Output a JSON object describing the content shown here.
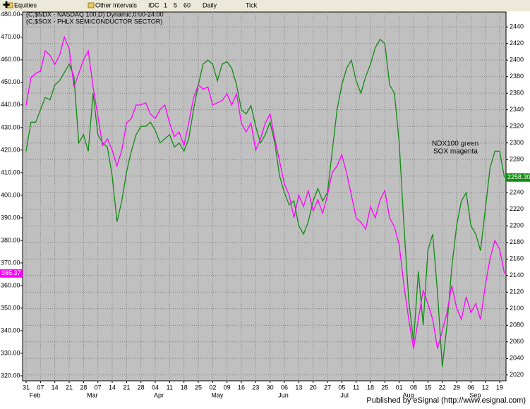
{
  "toolbar": {
    "items": [
      "Equities",
      "Other Intervals",
      "IDC",
      "1",
      "5",
      "60",
      "Daily",
      "Tick"
    ]
  },
  "footer": "Published by eSignal (http://www.esignal.com)",
  "chart_data": {
    "type": "line",
    "annotations": [
      "NDX100 green",
      "SOX magenta"
    ],
    "categories": [
      "31",
      null,
      null,
      "07",
      null,
      null,
      "14",
      null,
      null,
      "21",
      null,
      null,
      "28",
      null,
      null,
      "07",
      null,
      null,
      "14",
      null,
      null,
      "21",
      null,
      null,
      "28",
      null,
      null,
      "04",
      null,
      null,
      "11",
      null,
      null,
      "18",
      null,
      null,
      "25",
      null,
      null,
      "02",
      null,
      null,
      "09",
      null,
      null,
      "16",
      null,
      null,
      "23",
      null,
      null,
      "30",
      null,
      null,
      "06",
      null,
      null,
      "13",
      null,
      null,
      "20",
      null,
      null,
      "27",
      null,
      null,
      "05",
      null,
      null,
      "11",
      null,
      null,
      "18",
      null,
      null,
      "25",
      null,
      null,
      "01",
      null,
      null,
      "08",
      null,
      null,
      "15",
      null,
      null,
      "22",
      null,
      null,
      "29",
      null,
      null,
      "06",
      null,
      null,
      "12",
      null,
      null,
      "19",
      null
    ],
    "month_categories": [
      null,
      "Feb",
      null,
      null,
      null,
      null,
      null,
      null,
      null,
      null,
      null,
      null,
      null,
      "Mar",
      null,
      null,
      null,
      null,
      null,
      null,
      null,
      null,
      null,
      null,
      null,
      null,
      null,
      "Apr",
      null,
      null,
      null,
      null,
      null,
      null,
      null,
      null,
      null,
      null,
      null,
      "May",
      null,
      null,
      null,
      null,
      null,
      null,
      null,
      null,
      null,
      null,
      null,
      null,
      null,
      "Jun",
      null,
      null,
      null,
      null,
      null,
      null,
      null,
      null,
      null,
      null,
      null,
      null,
      "Jul",
      null,
      null,
      null,
      null,
      null,
      null,
      null,
      null,
      null,
      null,
      null,
      null,
      "Aug",
      null,
      null,
      null,
      null,
      null,
      null,
      null,
      null,
      null,
      null,
      null,
      null,
      null,
      "Sep",
      null,
      null,
      null,
      null,
      null,
      null,
      null
    ],
    "ylim": [
      317.8,
      481.2
    ],
    "yticks": [
      {
        "value": 320,
        "label": "320.00"
      },
      {
        "value": 330,
        "label": "330.00"
      },
      {
        "value": 340,
        "label": "340.00"
      },
      {
        "value": 350,
        "label": "350.00"
      },
      {
        "value": 360,
        "label": "360.00"
      },
      {
        "value": 370,
        "label": "370.00"
      },
      {
        "value": 380,
        "label": "380.00"
      },
      {
        "value": 390,
        "label": "390.00"
      },
      {
        "value": 400,
        "label": "400.00"
      },
      {
        "value": 410,
        "label": "410.00"
      },
      {
        "value": 420,
        "label": "420.00"
      },
      {
        "value": 430,
        "label": "430.00"
      },
      {
        "value": 440,
        "label": "440.00"
      },
      {
        "value": 450,
        "label": "450.00"
      },
      {
        "value": 460,
        "label": "460.00"
      },
      {
        "value": 470,
        "label": "470.00"
      },
      {
        "value": 480,
        "label": "480.00"
      }
    ],
    "y2lim": [
      2013,
      2458
    ],
    "y2ticks": [
      2020,
      2040,
      2060,
      2080,
      2100,
      2120,
      2140,
      2160,
      2180,
      2200,
      2220,
      2240,
      2260,
      2280,
      2300,
      2320,
      2340,
      2360,
      2380,
      2400,
      2420,
      2440
    ],
    "grid": true,
    "series": [
      {
        "name": "(C,$NDX - NASDAQ 100,D) Dynamic,0:00-24:00",
        "color": "#138a13",
        "axis": "y2",
        "last_label": "2258.30",
        "values": [
          2290,
          2325,
          2325,
          2340,
          2355,
          2352,
          2370,
          2375,
          2385,
          2395,
          2380,
          2300,
          2310,
          2290,
          2360,
          2310,
          2300,
          2295,
          2260,
          2205,
          2230,
          2265,
          2290,
          2310,
          2320,
          2320,
          2325,
          2315,
          2300,
          2305,
          2310,
          2295,
          2300,
          2290,
          2305,
          2340,
          2370,
          2395,
          2400,
          2395,
          2375,
          2395,
          2398,
          2390,
          2370,
          2340,
          2335,
          2345,
          2320,
          2300,
          2310,
          2325,
          2300,
          2260,
          2240,
          2225,
          2230,
          2200,
          2190,
          2205,
          2230,
          2245,
          2230,
          2240,
          2290,
          2340,
          2370,
          2390,
          2400,
          2375,
          2360,
          2380,
          2395,
          2415,
          2425,
          2420,
          2370,
          2360,
          2300,
          2200,
          2110,
          2060,
          2145,
          2080,
          2170,
          2190,
          2120,
          2030,
          2080,
          2150,
          2200,
          2230,
          2240,
          2200,
          2190,
          2170,
          2220,
          2270,
          2290,
          2290,
          2258.3
        ]
      },
      {
        "name": "(C,$SOX - PHLX SEMICONDUCTOR SECTOR)",
        "color": "#ff00ff",
        "axis": "y",
        "values": [
          440,
          452,
          454,
          455,
          464,
          462,
          458,
          462,
          470,
          465,
          448,
          454,
          460,
          464,
          448,
          435,
          422,
          425,
          420,
          413,
          420,
          432,
          434,
          440,
          440,
          441,
          436,
          434,
          438,
          440,
          432,
          426,
          428,
          422,
          432,
          443,
          449,
          447,
          448,
          440,
          441,
          442,
          445,
          440,
          445,
          432,
          428,
          432,
          420,
          425,
          432,
          436,
          425,
          415,
          405,
          400,
          390,
          400,
          395,
          402,
          393,
          398,
          392,
          400,
          410,
          413,
          418,
          410,
          400,
          390,
          388,
          385,
          395,
          390,
          398,
          402,
          390,
          386,
          378,
          360,
          345,
          332,
          345,
          358,
          352,
          345,
          332,
          340,
          348,
          360,
          350,
          345,
          355,
          348,
          352,
          345,
          360,
          372,
          380,
          376,
          365.37
        ]
      }
    ]
  }
}
